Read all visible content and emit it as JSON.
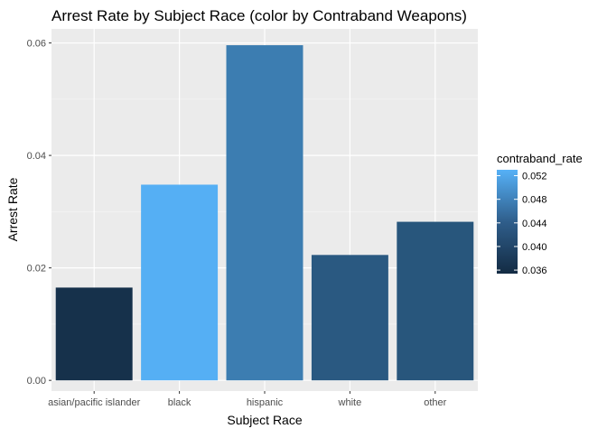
{
  "chart_data": {
    "type": "bar",
    "title": "Arrest Rate by Subject Race (color by Contraband Weapons)",
    "xlabel": "Subject Race",
    "ylabel": "Arrest Rate",
    "categories": [
      "asian/pacific islander",
      "black",
      "hispanic",
      "white",
      "other"
    ],
    "values": [
      0.0165,
      0.0348,
      0.0596,
      0.0223,
      0.0282
    ],
    "color_values": [
      0.0362,
      0.0527,
      0.0462,
      0.0415,
      0.041
    ],
    "ylim": [
      -0.0019,
      0.0625
    ],
    "yticks": [
      0.0,
      0.02,
      0.04,
      0.06
    ],
    "ytick_labels": [
      "0.00",
      "0.02",
      "0.04",
      "0.06"
    ],
    "grid": true,
    "panel_background": "#EBEBEB",
    "legend": {
      "title": "contraband_rate",
      "position": "right",
      "type": "colorbar",
      "ticks": [
        0.036,
        0.04,
        0.044,
        0.048,
        0.052
      ],
      "tick_labels": [
        "0.036",
        "0.040",
        "0.044",
        "0.048",
        "0.052"
      ],
      "range": [
        0.0354,
        0.053
      ],
      "color_low": "#132B43",
      "color_high": "#56B1F7"
    }
  }
}
